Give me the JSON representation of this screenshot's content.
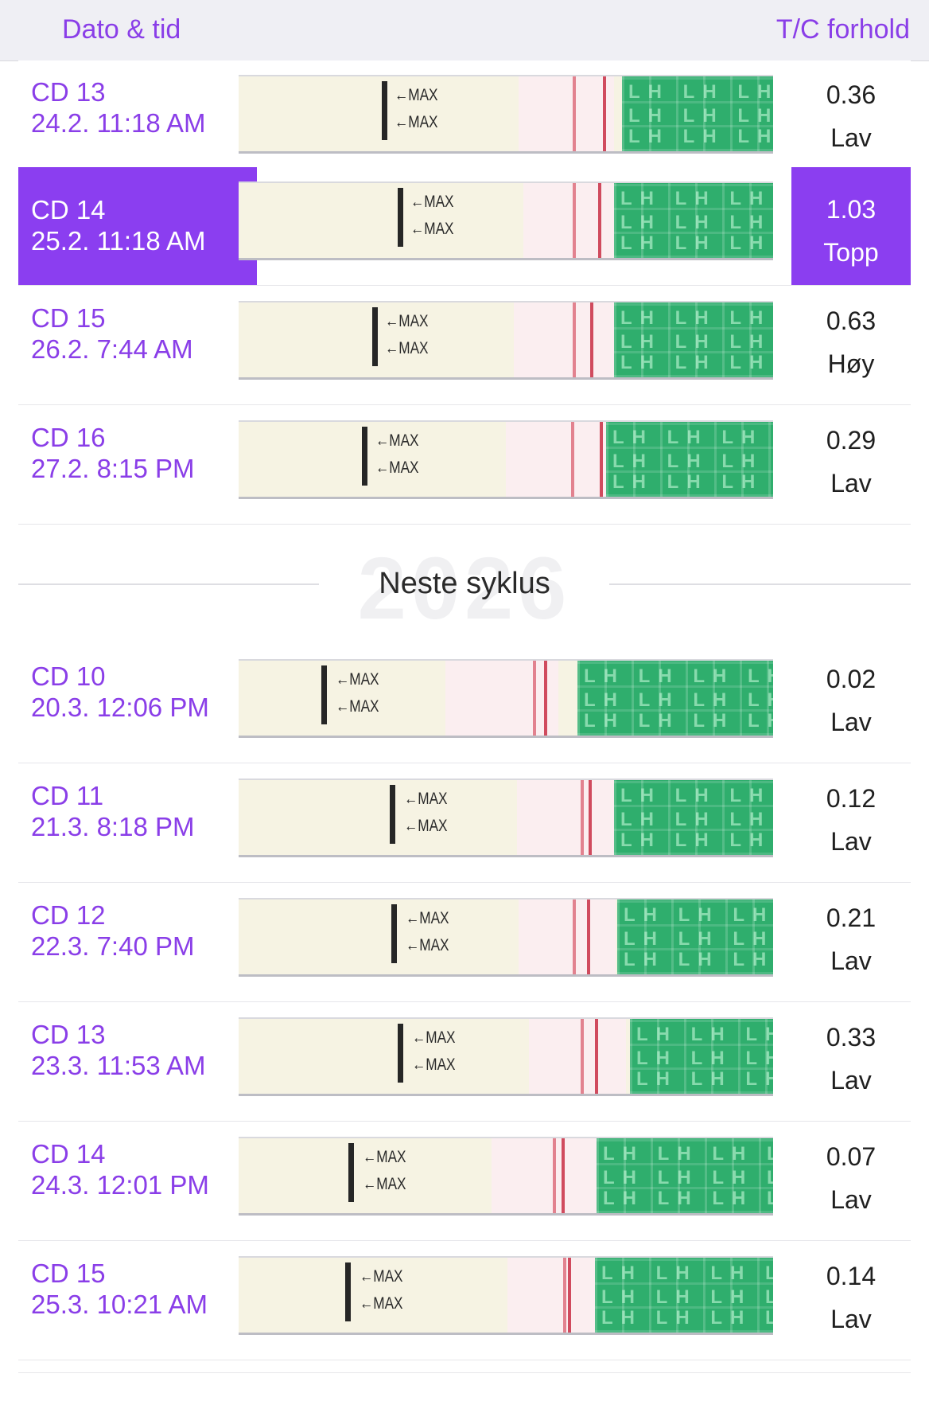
{
  "header": {
    "left": "Dato & tid",
    "right": "T/C forhold"
  },
  "cycle1": [
    {
      "cd": "CD 13",
      "date": "24.2. 11:18 AM",
      "ratio": "0.36",
      "level": "Lav",
      "selected": false
    },
    {
      "cd": "CD 14",
      "date": "25.2. 11:18 AM",
      "ratio": "1.03",
      "level": "Topp",
      "selected": true
    },
    {
      "cd": "CD 15",
      "date": "26.2. 7:44 AM",
      "ratio": "0.63",
      "level": "Høy",
      "selected": false
    },
    {
      "cd": "CD 16",
      "date": "27.2. 8:15 PM",
      "ratio": "0.29",
      "level": "Lav",
      "selected": false
    }
  ],
  "separator": {
    "label": "Neste syklus",
    "watermark": "2026"
  },
  "cycle2": [
    {
      "cd": "CD 10",
      "date": "20.3. 12:06 PM",
      "ratio": "0.02",
      "level": "Lav",
      "selected": false
    },
    {
      "cd": "CD 11",
      "date": "21.3. 8:18 PM",
      "ratio": "0.12",
      "level": "Lav",
      "selected": false
    },
    {
      "cd": "CD 12",
      "date": "22.3. 7:40 PM",
      "ratio": "0.21",
      "level": "Lav",
      "selected": false
    },
    {
      "cd": "CD 13",
      "date": "23.3. 11:53 AM",
      "ratio": "0.33",
      "level": "Lav",
      "selected": false
    },
    {
      "cd": "CD 14",
      "date": "24.3. 12:01 PM",
      "ratio": "0.07",
      "level": "Lav",
      "selected": false
    },
    {
      "cd": "CD 15",
      "date": "25.3. 10:21 AM",
      "ratio": "0.14",
      "level": "Lav",
      "selected": false
    }
  ],
  "strip": {
    "max_label": "←MAX",
    "brand": "LH"
  },
  "colors": {
    "accent": "#8a3ee8",
    "selected": "#8b3ef0",
    "strip_green": "#2fae6d"
  }
}
